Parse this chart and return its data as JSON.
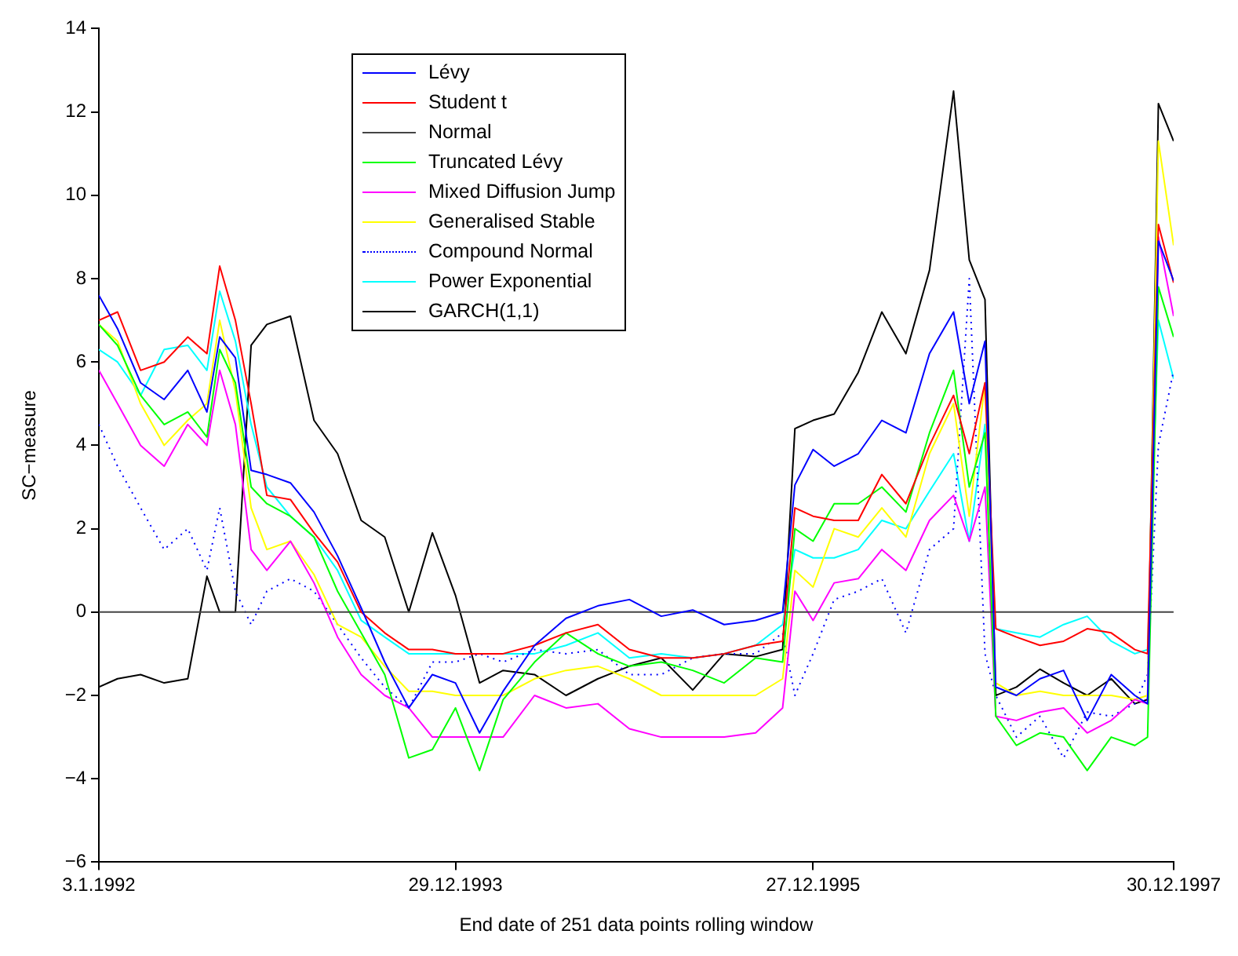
{
  "chart_data": {
    "type": "line",
    "xlabel": "End date of 251 data points rolling window",
    "ylabel": "SC−measure",
    "x": [
      "1992-01-03",
      "1992-02-10",
      "1992-03-28",
      "1992-05-15",
      "1992-07-02",
      "1992-08-10",
      "1992-09-05",
      "1992-10-07",
      "1992-11-08",
      "1992-12-10",
      "1993-01-27",
      "1993-03-16",
      "1993-05-03",
      "1993-06-20",
      "1993-08-07",
      "1993-09-25",
      "1993-11-12",
      "1993-12-29",
      "1994-02-16",
      "1994-04-05",
      "1994-06-08",
      "1994-08-11",
      "1994-10-15",
      "1994-12-18",
      "1995-02-21",
      "1995-04-26",
      "1995-06-29",
      "1995-09-01",
      "1995-10-26",
      "1995-11-20",
      "1995-12-27",
      "1996-02-08",
      "1996-03-28",
      "1996-05-15",
      "1996-07-03",
      "1996-08-20",
      "1996-10-08",
      "1996-11-09",
      "1996-12-11",
      "1997-01-02",
      "1997-02-13",
      "1997-04-02",
      "1997-05-20",
      "1997-07-07",
      "1997-08-25",
      "1997-10-12",
      "1997-11-07",
      "1997-11-29",
      "1997-12-30"
    ],
    "series": [
      {
        "name": "Lévy",
        "color": "#0000ff",
        "values": [
          7.6,
          6.8,
          5.5,
          5.1,
          5.8,
          4.8,
          6.6,
          6.1,
          3.4,
          3.3,
          3.1,
          2.4,
          1.35,
          0.1,
          -1.2,
          -2.3,
          -1.5,
          -1.7,
          -2.9,
          -1.9,
          -0.8,
          -0.15,
          0.15,
          0.3,
          -0.1,
          0.05,
          -0.3,
          -0.2,
          0,
          3.05,
          3.9,
          3.5,
          3.8,
          4.6,
          4.3,
          6.2,
          7.2,
          5.0,
          6.5,
          -1.8,
          -2.0,
          -1.6,
          -1.4,
          -2.6,
          -1.5,
          -2.0,
          -2.2,
          8.9,
          7.95
        ]
      },
      {
        "name": "Student t",
        "color": "#ff0000",
        "values": [
          7.0,
          7.2,
          5.8,
          6.0,
          6.6,
          6.2,
          8.3,
          7.0,
          5.0,
          2.8,
          2.7,
          1.9,
          1.2,
          0.0,
          -0.5,
          -0.9,
          -0.9,
          -1.0,
          -1.0,
          -1.0,
          -0.8,
          -0.5,
          -0.3,
          -0.9,
          -1.1,
          -1.1,
          -1.0,
          -0.8,
          -0.7,
          2.5,
          2.3,
          2.2,
          2.2,
          3.3,
          2.6,
          4.0,
          5.2,
          3.8,
          5.5,
          -0.4,
          -0.6,
          -0.8,
          -0.7,
          -0.4,
          -0.5,
          -0.9,
          -1.0,
          9.3,
          7.9
        ]
      },
      {
        "name": "Normal",
        "color": "#444444",
        "values": [
          0,
          0,
          0,
          0,
          0,
          0,
          0,
          0,
          0,
          0,
          0,
          0,
          0,
          0,
          0,
          0,
          0,
          0,
          0,
          0,
          0,
          0,
          0,
          0,
          0,
          0,
          0,
          0,
          0,
          0,
          0,
          0,
          0,
          0,
          0,
          0,
          0,
          0,
          0,
          0,
          0,
          0,
          0,
          0,
          0,
          0,
          0,
          0,
          0
        ]
      },
      {
        "name": "Truncated Lévy",
        "color": "#00ff00",
        "values": [
          6.9,
          6.4,
          5.2,
          4.5,
          4.8,
          4.2,
          6.3,
          5.5,
          3.0,
          2.6,
          2.3,
          1.8,
          0.5,
          -0.5,
          -1.5,
          -3.5,
          -3.3,
          -2.3,
          -3.8,
          -2.1,
          -1.2,
          -0.5,
          -1.0,
          -1.3,
          -1.2,
          -1.4,
          -1.7,
          -1.1,
          -1.2,
          2.0,
          1.7,
          2.6,
          2.6,
          3.0,
          2.4,
          4.3,
          5.8,
          3.0,
          4.3,
          -2.5,
          -3.2,
          -2.9,
          -3.0,
          -3.8,
          -3.0,
          -3.2,
          -3.0,
          7.8,
          6.6
        ]
      },
      {
        "name": "Mixed Diffusion Jump",
        "color": "#ff00ff",
        "values": [
          5.8,
          5.0,
          4.0,
          3.5,
          4.5,
          4.0,
          5.8,
          4.5,
          1.5,
          1.0,
          1.7,
          0.7,
          -0.6,
          -1.5,
          -2.0,
          -2.3,
          -3.0,
          -3.0,
          -3.0,
          -3.0,
          -2.0,
          -2.3,
          -2.2,
          -2.8,
          -3.0,
          -3.0,
          -3.0,
          -2.9,
          -2.3,
          0.5,
          -0.2,
          0.7,
          0.8,
          1.5,
          1.0,
          2.2,
          2.8,
          1.7,
          3.0,
          -2.5,
          -2.6,
          -2.4,
          -2.3,
          -2.9,
          -2.6,
          -2.1,
          -2.2,
          9.0,
          7.1
        ]
      },
      {
        "name": "Generalised Stable",
        "color": "#ffff00",
        "values": [
          6.9,
          6.5,
          5.0,
          4.0,
          4.6,
          5.0,
          7.0,
          5.3,
          2.5,
          1.5,
          1.7,
          0.9,
          -0.3,
          -0.6,
          -1.3,
          -1.9,
          -1.9,
          -2.0,
          -2.0,
          -2.0,
          -1.6,
          -1.4,
          -1.3,
          -1.6,
          -2.0,
          -2.0,
          -2.0,
          -2.0,
          -1.6,
          1.0,
          0.6,
          2.0,
          1.8,
          2.5,
          1.8,
          3.8,
          5.0,
          2.3,
          5.5,
          -1.7,
          -2.0,
          -1.9,
          -2.0,
          -2.0,
          -2.0,
          -2.1,
          -2.0,
          11.3,
          8.8
        ]
      },
      {
        "name": "Compound Normal",
        "color": "#0000ff",
        "line_style": "dotted",
        "values": [
          4.5,
          3.5,
          2.5,
          1.5,
          2.0,
          1.0,
          2.5,
          0.5,
          -0.3,
          0.5,
          0.8,
          0.5,
          -0.3,
          -1.1,
          -1.8,
          -2.3,
          -1.2,
          -1.2,
          -1.0,
          -1.2,
          -0.9,
          -1.0,
          -0.9,
          -1.5,
          -1.5,
          -1.1,
          -1.0,
          -1.0,
          -0.5,
          -2.0,
          -1.0,
          0.3,
          0.5,
          0.8,
          -0.5,
          1.5,
          2.0,
          8.0,
          -1.0,
          -2.0,
          -3.0,
          -2.5,
          -3.5,
          -2.4,
          -2.5,
          -2.2,
          -1.5,
          4.0,
          5.8
        ]
      },
      {
        "name": "Power Exponential",
        "color": "#00ffff",
        "values": [
          6.3,
          6.0,
          5.2,
          6.3,
          6.4,
          5.8,
          7.7,
          6.5,
          4.5,
          3.0,
          2.3,
          1.8,
          1.0,
          -0.2,
          -0.6,
          -1.0,
          -1.0,
          -1.0,
          -1.0,
          -1.0,
          -1.0,
          -0.8,
          -0.5,
          -1.1,
          -1.0,
          -1.1,
          -1.0,
          -0.8,
          -0.3,
          1.5,
          1.3,
          1.3,
          1.5,
          2.2,
          2.0,
          2.9,
          3.8,
          1.7,
          4.5,
          -0.4,
          -0.5,
          -0.6,
          -0.3,
          -0.1,
          -0.7,
          -1.0,
          -0.9,
          7.0,
          5.6
        ]
      },
      {
        "name": "GARCH(1,1)",
        "color": "#000000",
        "values": [
          -1.8,
          -1.6,
          -1.5,
          -1.7,
          -1.6,
          0.86,
          0.0,
          0.0,
          6.4,
          6.9,
          7.1,
          4.6,
          3.8,
          2.2,
          1.8,
          0.0,
          1.9,
          0.4,
          -1.7,
          -1.4,
          -1.5,
          -2.0,
          -1.6,
          -1.3,
          -1.1,
          -1.87,
          -1.0,
          -1.07,
          -0.9,
          4.4,
          4.6,
          4.75,
          5.75,
          7.2,
          6.2,
          8.2,
          12.5,
          8.45,
          7.5,
          -2.0,
          -1.8,
          -1.37,
          -1.7,
          -2.0,
          -1.6,
          -2.2,
          -2.1,
          12.2,
          11.3
        ]
      }
    ],
    "xlim": [
      "1992-01-03",
      "1997-12-30"
    ],
    "xticks": [
      {
        "value": "1992-01-03",
        "label": "3.1.1992"
      },
      {
        "value": "1993-12-29",
        "label": "29.12.1993"
      },
      {
        "value": "1995-12-27",
        "label": "27.12.1995"
      },
      {
        "value": "1997-12-30",
        "label": "30.12.1997"
      }
    ],
    "ylim": [
      -6,
      14
    ],
    "yticks": [
      -6,
      -4,
      -2,
      0,
      2,
      4,
      6,
      8,
      10,
      12,
      14
    ],
    "legend": "top left",
    "marker": "none",
    "line_style": "solid"
  }
}
